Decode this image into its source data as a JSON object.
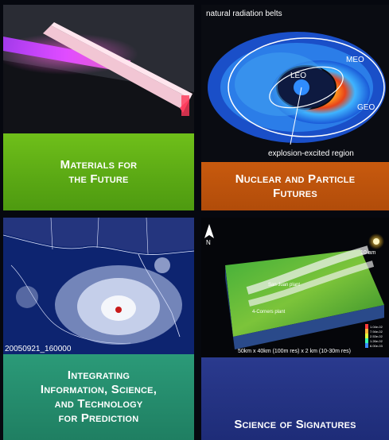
{
  "tiles": [
    {
      "label_lines": [
        "Materials for",
        "the Future"
      ],
      "accent": "#5aa814"
    },
    {
      "label_lines": [
        "Nuclear and Particle",
        "Futures"
      ],
      "accent": "#b14c0a",
      "image_labels": {
        "belts": "natural radiation belts",
        "leo": "LEO",
        "meo": "MEO",
        "geo": "GEO",
        "region": "explosion-excited region"
      }
    },
    {
      "label_lines": [
        "Integrating",
        "Information, Science,",
        "and Technology",
        "for Prediction"
      ],
      "accent": "#1f7f62",
      "image_labels": {
        "timestamp": "20050921_160000"
      }
    },
    {
      "label_lines": [
        "Science of Signatures"
      ],
      "accent": "#1e2c78",
      "image_labels": {
        "north": "N",
        "time": "10 am",
        "plant_a": "4-Corners plant",
        "plant_b": "San Juan plant",
        "scale": "50km x 40km (100m res) x 2 km (10-30m res)",
        "legend": [
          "1.04e-02",
          "7.94e-02",
          "2.53e-02",
          "1.26e-02",
          "6.00e-03"
        ]
      }
    }
  ]
}
